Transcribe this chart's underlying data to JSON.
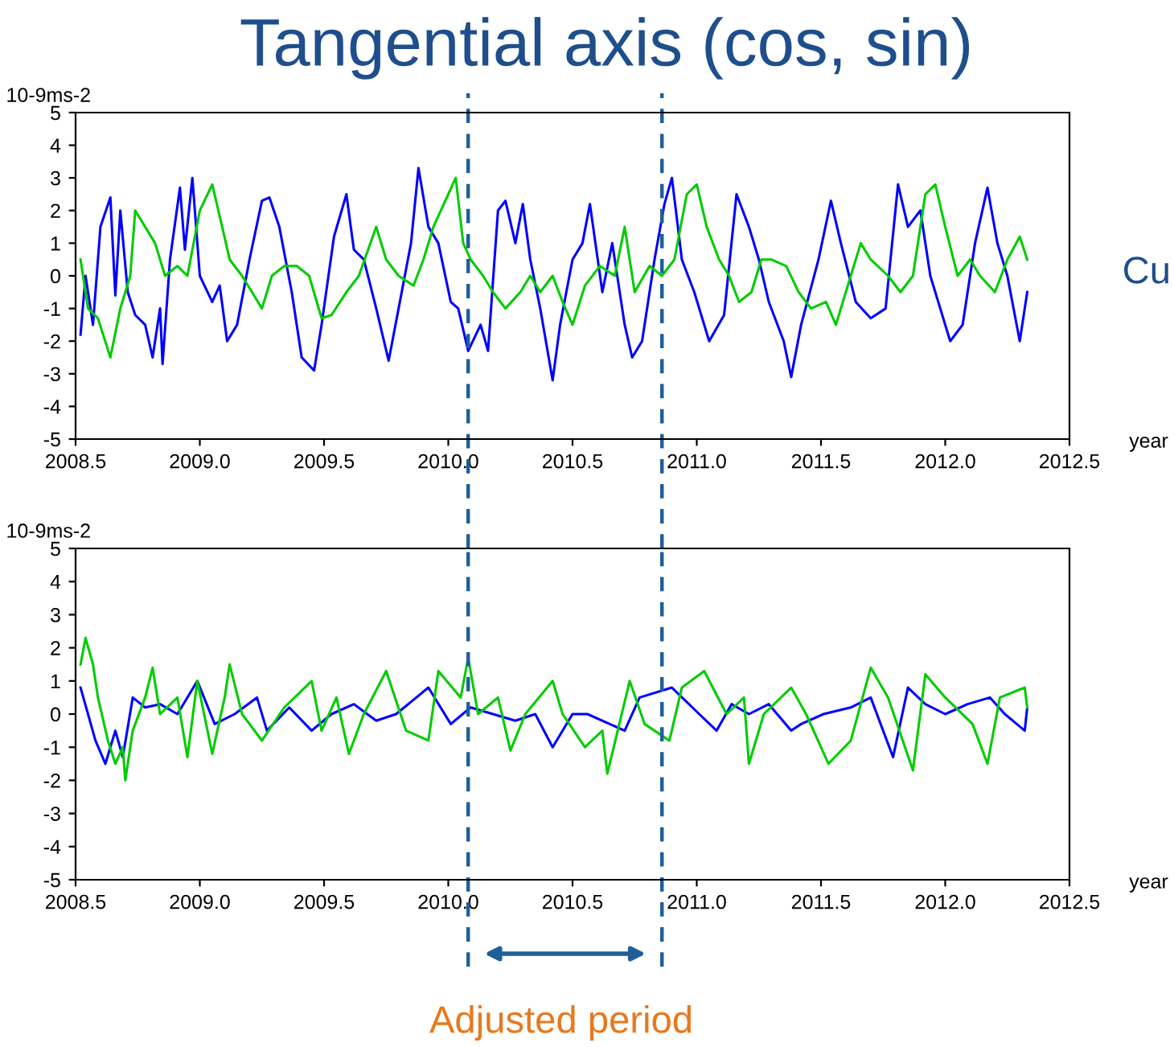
{
  "chart_data": [
    {
      "type": "line",
      "title": "Tangential axis (cos, sin)",
      "ylabel": "10-9ms-2",
      "xlabel": "year",
      "annotations": [
        "Cu"
      ],
      "xlim": [
        2008.5,
        2012.5
      ],
      "xticks": [
        2008.5,
        {
          "value": 2009,
          "label": "2009.0"
        },
        2009.5,
        {
          "value": 2010,
          "label": "2010.0"
        },
        2010.5,
        {
          "value": 2011,
          "label": "2011.0"
        },
        2011.5,
        {
          "value": 2012,
          "label": "2012.0"
        },
        2012.5
      ],
      "ylim": [
        -5,
        5
      ],
      "yticks": [
        -5,
        -4,
        -3,
        -2,
        -1,
        0,
        1,
        2,
        3,
        4,
        5
      ],
      "grid": false,
      "legend": false,
      "ref_lines": [
        {
          "axis": "x",
          "value": 2010.08,
          "color": "#1f5f99",
          "line_style": "dashed"
        },
        {
          "axis": "x",
          "value": 2010.86,
          "color": "#1f5f99",
          "line_style": "dashed"
        }
      ],
      "series": [
        {
          "color": "#0000ff",
          "x": [
            2008.52,
            2008.54,
            2008.57,
            2008.6,
            2008.64,
            2008.66,
            2008.68,
            2008.71,
            2008.74,
            2008.78,
            2008.81,
            2008.84,
            2008.85,
            2008.88,
            2008.92,
            2008.94,
            2008.97,
            2009.0,
            2009.05,
            2009.08,
            2009.11,
            2009.15,
            2009.2,
            2009.25,
            2009.28,
            2009.32,
            2009.37,
            2009.41,
            2009.46,
            2009.49,
            2009.54,
            2009.59,
            2009.62,
            2009.66,
            2009.71,
            2009.76,
            2009.8,
            2009.85,
            2009.88,
            2009.92,
            2009.96,
            2010.01,
            2010.04,
            2010.08,
            2010.13,
            2010.16,
            2010.2,
            2010.23,
            2010.27,
            2010.3,
            2010.33,
            2010.37,
            2010.42,
            2010.45,
            2010.5,
            2010.54,
            2010.57,
            2010.62,
            2010.66,
            2010.71,
            2010.74,
            2010.78,
            2010.83,
            2010.87,
            2010.9,
            2010.94,
            2010.99,
            2011.05,
            2011.11,
            2011.16,
            2011.21,
            2011.25,
            2011.29,
            2011.35,
            2011.38,
            2011.42,
            2011.49,
            2011.54,
            2011.58,
            2011.64,
            2011.7,
            2011.76,
            2011.81,
            2011.85,
            2011.9,
            2011.94,
            2011.98,
            2012.02,
            2012.07,
            2012.12,
            2012.17,
            2012.21,
            2012.25,
            2012.3,
            2012.33
          ],
          "values": [
            -1.8,
            0,
            -1.5,
            1.5,
            2.4,
            -0.6,
            2.0,
            -0.5,
            -1.2,
            -1.5,
            -2.5,
            -1.0,
            -2.7,
            0.5,
            2.7,
            0.8,
            3.0,
            0,
            -0.8,
            -0.3,
            -2.0,
            -1.5,
            0.5,
            2.3,
            2.4,
            1.5,
            -0.5,
            -2.5,
            -2.9,
            -1.5,
            1.2,
            2.5,
            0.8,
            0.5,
            -1.0,
            -2.6,
            -1.0,
            1.0,
            3.3,
            1.5,
            1.0,
            -0.8,
            -1.0,
            -2.3,
            -1.5,
            -2.3,
            2.0,
            2.3,
            1.0,
            2.2,
            0.5,
            -1.0,
            -3.2,
            -1.5,
            0.5,
            1.0,
            2.2,
            -0.5,
            1.0,
            -1.5,
            -2.5,
            -2.0,
            0.5,
            2.2,
            3.0,
            0.5,
            -0.5,
            -2.0,
            -1.2,
            2.5,
            1.5,
            0.5,
            -0.8,
            -2.0,
            -3.1,
            -1.5,
            0.5,
            2.3,
            1.0,
            -0.8,
            -1.3,
            -1.0,
            2.8,
            1.5,
            2.0,
            0,
            -1.0,
            -2.0,
            -1.5,
            1.0,
            2.7,
            1.0,
            0,
            -2.0,
            -0.5
          ]
        },
        {
          "color": "#00cc00",
          "x": [
            2008.52,
            2008.55,
            2008.59,
            2008.64,
            2008.68,
            2008.72,
            2008.74,
            2008.78,
            2008.82,
            2008.86,
            2008.91,
            2008.95,
            2009.0,
            2009.05,
            2009.09,
            2009.12,
            2009.17,
            2009.21,
            2009.25,
            2009.29,
            2009.34,
            2009.39,
            2009.44,
            2009.49,
            2009.53,
            2009.59,
            2009.64,
            2009.71,
            2009.75,
            2009.8,
            2009.86,
            2009.9,
            2009.94,
            2010.0,
            2010.03,
            2010.06,
            2010.09,
            2010.14,
            2010.18,
            2010.23,
            2010.29,
            2010.33,
            2010.37,
            2010.42,
            2010.46,
            2010.5,
            2010.55,
            2010.61,
            2010.67,
            2010.71,
            2010.75,
            2010.81,
            2010.86,
            2010.91,
            2010.96,
            2011.0,
            2011.04,
            2011.09,
            2011.13,
            2011.17,
            2011.22,
            2011.26,
            2011.3,
            2011.36,
            2011.41,
            2011.46,
            2011.52,
            2011.56,
            2011.6,
            2011.66,
            2011.7,
            2011.77,
            2011.82,
            2011.87,
            2011.92,
            2011.96,
            2012.0,
            2012.05,
            2012.1,
            2012.14,
            2012.2,
            2012.25,
            2012.3,
            2012.33
          ],
          "values": [
            0.5,
            -1.0,
            -1.3,
            -2.5,
            -1.0,
            0,
            2.0,
            1.5,
            1.0,
            0,
            0.3,
            0,
            2.0,
            2.8,
            1.5,
            0.5,
            0,
            -0.5,
            -1.0,
            0,
            0.3,
            0.3,
            0,
            -1.3,
            -1.2,
            -0.5,
            0,
            1.5,
            0.5,
            0,
            -0.3,
            0.5,
            1.5,
            2.5,
            3.0,
            1.0,
            0.5,
            0,
            -0.5,
            -1.0,
            -0.5,
            0,
            -0.5,
            0,
            -0.8,
            -1.5,
            -0.3,
            0.3,
            0,
            1.5,
            -0.5,
            0.3,
            0,
            0.5,
            2.5,
            2.8,
            1.5,
            0.5,
            0,
            -0.8,
            -0.5,
            0.5,
            0.5,
            0.3,
            -0.5,
            -1.0,
            -0.8,
            -1.5,
            -0.5,
            1.0,
            0.5,
            0,
            -0.5,
            0,
            2.5,
            2.8,
            1.5,
            0,
            0.5,
            0,
            -0.5,
            0.5,
            1.2,
            0.5
          ]
        }
      ]
    },
    {
      "type": "line",
      "ylabel": "10-9ms-2",
      "xlabel": "year",
      "annotations": [
        "Adjusted period"
      ],
      "xlim": [
        2008.5,
        2012.5
      ],
      "xticks": [
        2008.5,
        {
          "value": 2009,
          "label": "2009.0"
        },
        2009.5,
        {
          "value": 2010,
          "label": "2010.0"
        },
        2010.5,
        {
          "value": 2011,
          "label": "2011.0"
        },
        2011.5,
        {
          "value": 2012,
          "label": "2012.0"
        },
        2012.5
      ],
      "ylim": [
        -5,
        5
      ],
      "yticks": [
        -5,
        -4,
        -3,
        -2,
        -1,
        0,
        1,
        2,
        3,
        4,
        5
      ],
      "grid": false,
      "legend": false,
      "ref_lines": [
        {
          "axis": "x",
          "value": 2010.08,
          "color": "#1f5f99",
          "line_style": "dashed"
        },
        {
          "axis": "x",
          "value": 2010.86,
          "color": "#1f5f99",
          "line_style": "dashed"
        }
      ],
      "series": [
        {
          "color": "#0000ff",
          "x": [
            2008.52,
            2008.55,
            2008.58,
            2008.62,
            2008.66,
            2008.69,
            2008.73,
            2008.78,
            2008.84,
            2008.91,
            2008.99,
            2009.06,
            2009.14,
            2009.23,
            2009.27,
            2009.36,
            2009.45,
            2009.53,
            2009.62,
            2009.71,
            2009.79,
            2009.92,
            2010.01,
            2010.09,
            2010.18,
            2010.27,
            2010.35,
            2010.42,
            2010.5,
            2010.56,
            2010.71,
            2010.77,
            2010.9,
            2011.01,
            2011.08,
            2011.14,
            2011.21,
            2011.29,
            2011.38,
            2011.42,
            2011.51,
            2011.62,
            2011.7,
            2011.79,
            2011.85,
            2011.92,
            2012.0,
            2012.09,
            2012.18,
            2012.24,
            2012.32,
            2012.33
          ],
          "values": [
            0.8,
            0,
            -0.8,
            -1.5,
            -0.5,
            -1.3,
            0.5,
            0.2,
            0.3,
            0,
            1.0,
            -0.3,
            0,
            0.5,
            -0.5,
            0.2,
            -0.5,
            0,
            0.3,
            -0.2,
            0,
            0.8,
            -0.3,
            0.2,
            0,
            -0.2,
            0,
            -1.0,
            0,
            0,
            -0.5,
            0.5,
            0.8,
            0,
            -0.5,
            0.3,
            0,
            0.3,
            -0.5,
            -0.3,
            0,
            0.2,
            0.5,
            -1.3,
            0.8,
            0.3,
            0,
            0.3,
            0.5,
            0,
            -0.5,
            0.2
          ]
        },
        {
          "color": "#00cc00",
          "x": [
            2008.52,
            2008.54,
            2008.57,
            2008.59,
            2008.63,
            2008.66,
            2008.69,
            2008.7,
            2008.73,
            2008.78,
            2008.81,
            2008.84,
            2008.91,
            2008.95,
            2008.99,
            2009.05,
            2009.1,
            2009.12,
            2009.17,
            2009.25,
            2009.34,
            2009.45,
            2009.49,
            2009.55,
            2009.6,
            2009.66,
            2009.75,
            2009.83,
            2009.92,
            2009.96,
            2010.05,
            2010.08,
            2010.12,
            2010.2,
            2010.25,
            2010.31,
            2010.42,
            2010.46,
            2010.55,
            2010.62,
            2010.64,
            2010.73,
            2010.79,
            2010.89,
            2010.94,
            2011.03,
            2011.12,
            2011.19,
            2011.21,
            2011.27,
            2011.38,
            2011.44,
            2011.53,
            2011.62,
            2011.7,
            2011.77,
            2011.87,
            2011.92,
            2012.0,
            2012.11,
            2012.17,
            2012.22,
            2012.32,
            2012.33
          ],
          "values": [
            1.5,
            2.3,
            1.5,
            0.5,
            -0.8,
            -1.5,
            -1.0,
            -2.0,
            -0.5,
            0.5,
            1.4,
            0,
            0.5,
            -1.3,
            1.0,
            -1.2,
            0.5,
            1.5,
            0,
            -0.8,
            0.2,
            1.0,
            -0.5,
            0.5,
            -1.2,
            0,
            1.3,
            -0.5,
            -0.8,
            1.3,
            0.5,
            1.7,
            0,
            0.5,
            -1.1,
            0,
            1.0,
            0,
            -1.0,
            -0.5,
            -1.8,
            1.0,
            -0.3,
            -0.8,
            0.8,
            1.3,
            0,
            0.5,
            -1.5,
            0,
            0.8,
            0,
            -1.5,
            -0.8,
            1.4,
            0.5,
            -1.7,
            1.2,
            0.5,
            -0.3,
            -1.5,
            0.5,
            0.8,
            0.2
          ]
        }
      ]
    }
  ]
}
